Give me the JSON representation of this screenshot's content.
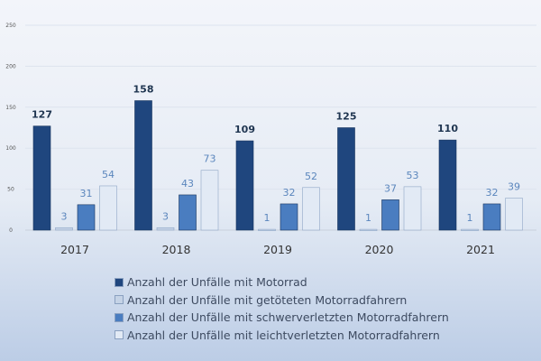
{
  "chart_data": {
    "type": "bar",
    "title": "",
    "xlabel": "",
    "ylabel": "",
    "ylim": [
      0,
      250
    ],
    "yticks": [
      "0",
      "50",
      "100",
      "150",
      "200",
      "250"
    ],
    "categories": [
      "2017",
      "2018",
      "2019",
      "2020",
      "2021"
    ],
    "series": [
      {
        "name": "Anzahl der Unfälle mit Motorrad",
        "color": "#1f467e",
        "label_color": "#1f3550",
        "values": [
          127,
          158,
          109,
          125,
          110
        ]
      },
      {
        "name": "Anzahl der Unfälle mit getöteten Motorradfahrern",
        "color": "#c5d3e6",
        "label_color": "#5b86bd",
        "values": [
          3,
          3,
          1,
          1,
          1
        ]
      },
      {
        "name": "Anzahl der Unfälle mit schwerverletzten Motorradfahrern",
        "color": "#4a7dc0",
        "label_color": "#5b86bd",
        "values": [
          31,
          43,
          32,
          37,
          32
        ]
      },
      {
        "name": "Anzahl der Unfälle mit leichtverletzten Motorradfahrern",
        "color": "#e2eaf5",
        "label_color": "#5b86bd",
        "values": [
          54,
          73,
          52,
          53,
          39
        ]
      }
    ],
    "legend_position": "bottom"
  }
}
